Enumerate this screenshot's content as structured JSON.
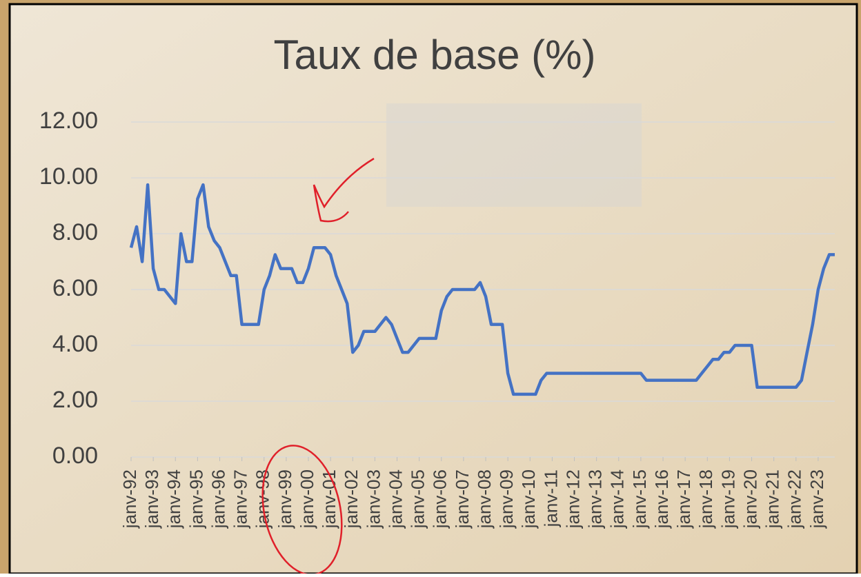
{
  "chart_data": {
    "type": "line",
    "title": "Taux de base (%)",
    "categories": [
      "janv-92",
      null,
      null,
      null,
      "janv-93",
      null,
      null,
      null,
      "janv-94",
      null,
      null,
      null,
      "janv-95",
      null,
      null,
      null,
      "janv-96",
      null,
      null,
      null,
      "janv-97",
      null,
      null,
      null,
      "janv-98",
      null,
      null,
      null,
      "janv-99",
      null,
      null,
      null,
      "janv-00",
      null,
      null,
      null,
      "janv-01",
      null,
      null,
      null,
      "janv-02",
      null,
      null,
      null,
      "janv-03",
      null,
      null,
      null,
      "janv-04",
      null,
      null,
      null,
      "janv-05",
      null,
      null,
      null,
      "janv-06",
      null,
      null,
      null,
      "janv-07",
      null,
      null,
      null,
      "janv-08",
      null,
      null,
      null,
      "janv-09",
      null,
      null,
      null,
      "janv-10",
      null,
      null,
      null,
      "janv-11",
      null,
      null,
      null,
      "janv-12",
      null,
      null,
      null,
      "janv-13",
      null,
      null,
      null,
      "janv-14",
      null,
      null,
      null,
      "janv-15",
      null,
      null,
      null,
      "janv-16",
      null,
      null,
      null,
      "janv-17",
      null,
      null,
      null,
      "janv-18",
      null,
      null,
      null,
      "janv-19",
      null,
      null,
      null,
      "janv-20",
      null,
      null,
      null,
      "janv-21",
      null,
      null,
      null,
      "janv-22",
      null,
      null,
      null,
      "janv-23",
      null,
      null,
      null
    ],
    "values": [
      7.5,
      8.25,
      7.0,
      9.75,
      6.75,
      6.0,
      6.0,
      5.75,
      5.5,
      8.0,
      7.0,
      7.0,
      9.25,
      9.75,
      8.25,
      7.75,
      7.5,
      7.0,
      6.5,
      6.5,
      4.75,
      4.75,
      4.75,
      4.75,
      6.0,
      6.5,
      7.25,
      6.75,
      6.75,
      6.75,
      6.25,
      6.25,
      6.75,
      7.5,
      7.5,
      7.5,
      7.25,
      6.5,
      6.0,
      5.5,
      3.75,
      4.0,
      4.5,
      4.5,
      4.5,
      4.75,
      5.0,
      4.75,
      4.25,
      3.75,
      3.75,
      4.0,
      4.25,
      4.25,
      4.25,
      4.25,
      5.25,
      5.75,
      6.0,
      6.0,
      6.0,
      6.0,
      6.0,
      6.25,
      5.75,
      4.75,
      4.75,
      4.75,
      3.0,
      2.25,
      2.25,
      2.25,
      2.25,
      2.25,
      2.75,
      3.0,
      3.0,
      3.0,
      3.0,
      3.0,
      3.0,
      3.0,
      3.0,
      3.0,
      3.0,
      3.0,
      3.0,
      3.0,
      3.0,
      3.0,
      3.0,
      3.0,
      3.0,
      2.75,
      2.75,
      2.75,
      2.75,
      2.75,
      2.75,
      2.75,
      2.75,
      2.75,
      2.75,
      3.0,
      3.25,
      3.5,
      3.5,
      3.75,
      3.75,
      4.0,
      4.0,
      4.0,
      4.0,
      2.5,
      2.5,
      2.5,
      2.5,
      2.5,
      2.5,
      2.5,
      2.5,
      2.75,
      3.75,
      4.75,
      6.0,
      6.75,
      7.25,
      7.25
    ],
    "color": "#4472c4",
    "ylim": [
      0,
      12
    ],
    "yticks": [
      {
        "value": 0,
        "label": "0.00"
      },
      {
        "value": 2,
        "label": "2.00"
      },
      {
        "value": 4,
        "label": "4.00"
      },
      {
        "value": 6,
        "label": "6.00"
      },
      {
        "value": 8,
        "label": "8.00"
      },
      {
        "value": 10,
        "label": "10.00"
      },
      {
        "value": 12,
        "label": "12.00"
      }
    ],
    "grid": true
  }
}
